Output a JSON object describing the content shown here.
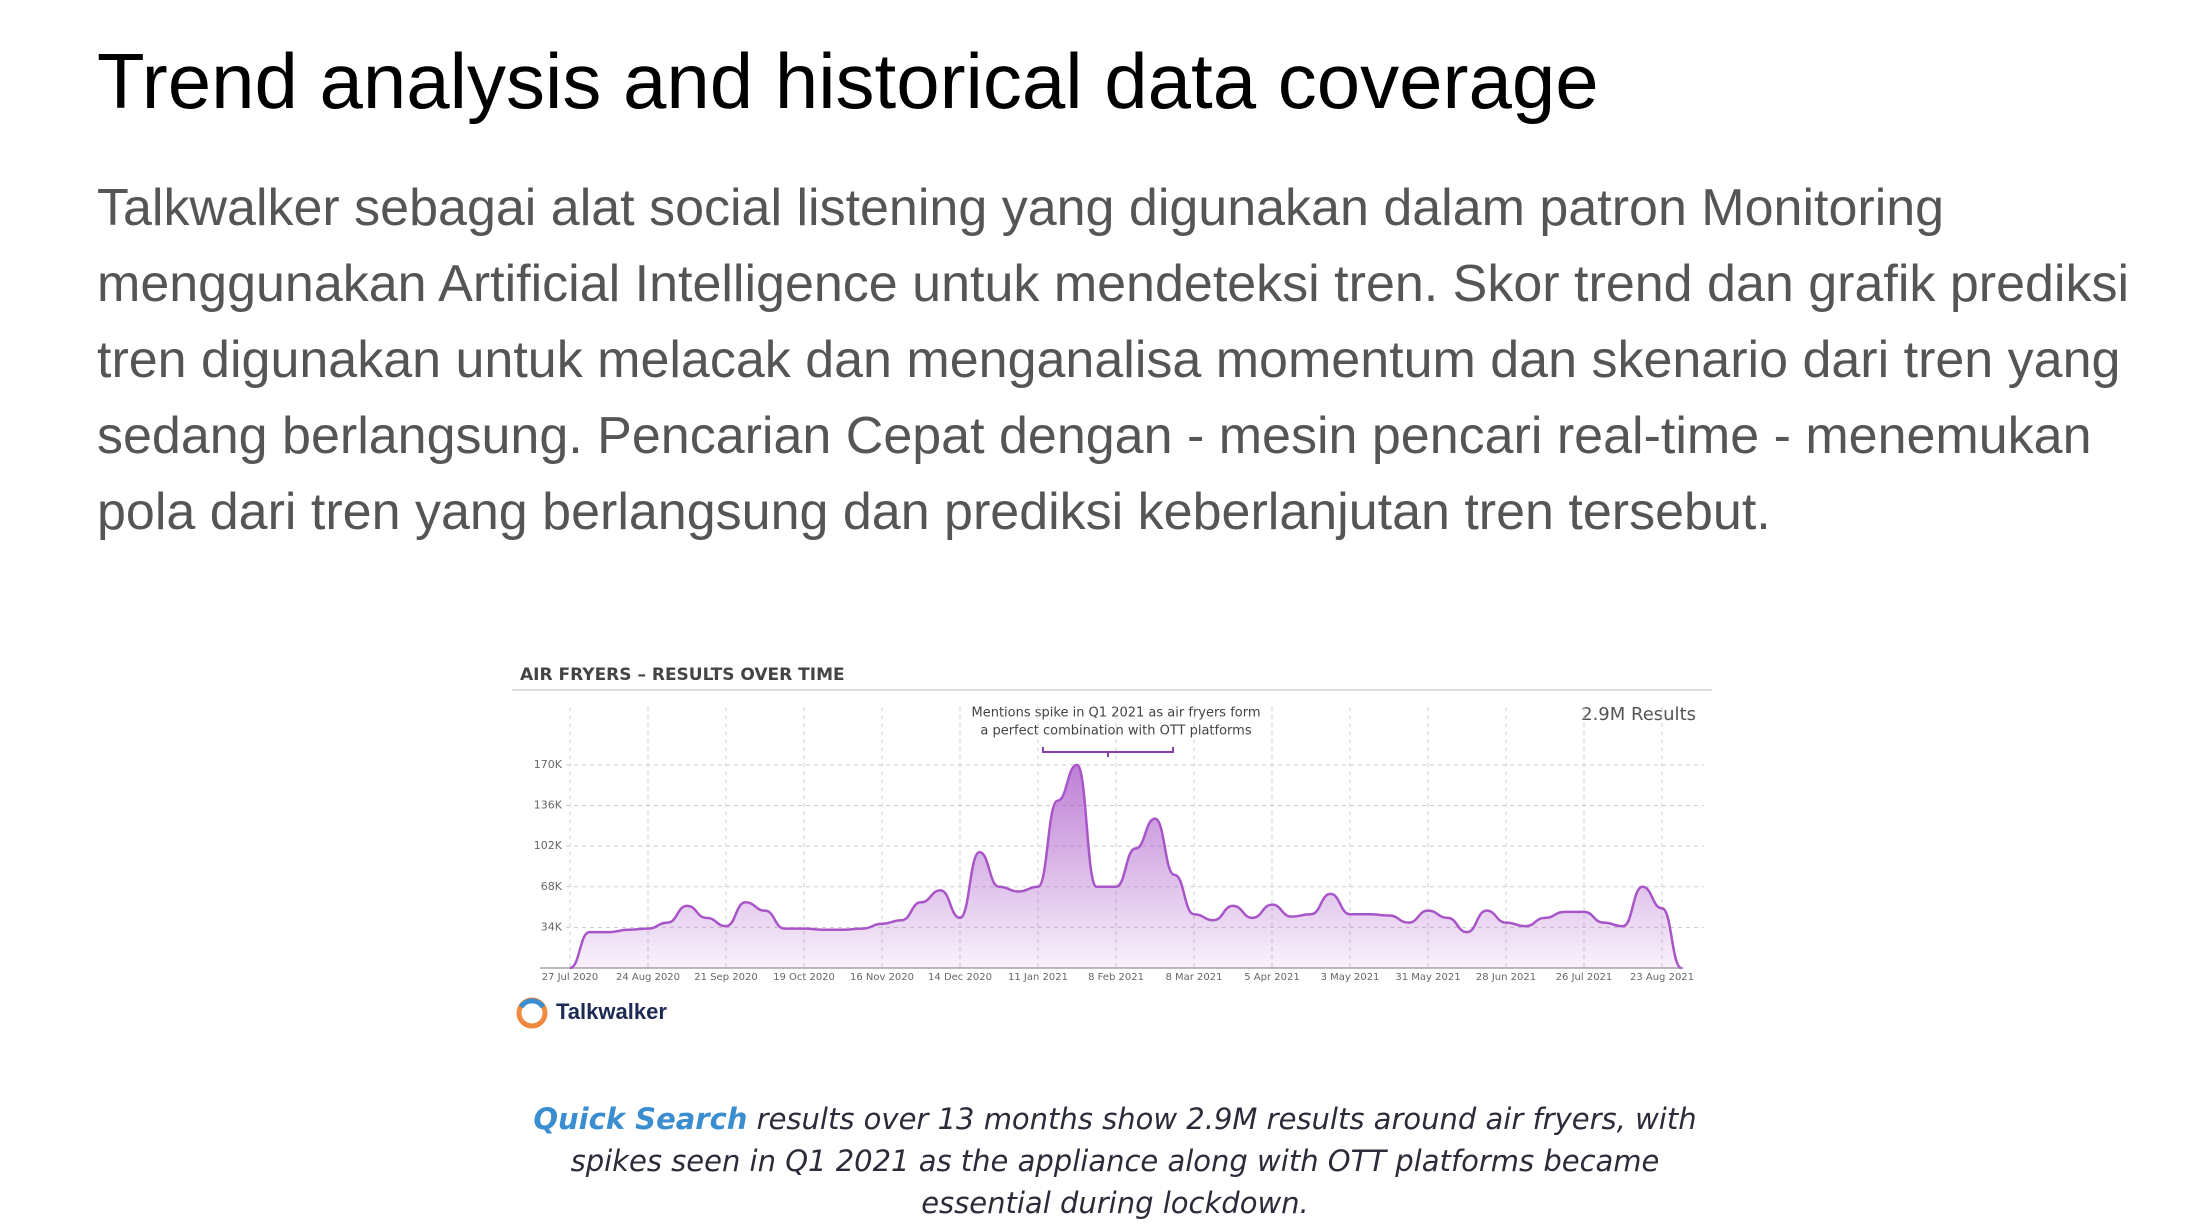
{
  "heading": "Trend analysis and historical data coverage",
  "paragraph": "Talkwalker sebagai alat social listening yang digunakan dalam patron Monitoring menggunakan Artificial Intelligence untuk mendeteksi tren. Skor trend dan grafik prediksi tren digunakan untuk melacak dan menganalisa momentum dan skenario dari tren yang sedang berlangsung. Pencarian Cepat dengan - mesin pencari real-time - menemukan pola dari tren yang berlangsung dan prediksi keberlanjutan tren tersebut.",
  "chart_data": {
    "type": "area",
    "title": "AIR FRYERS – RESULTS OVER TIME",
    "total": "2.9M Results",
    "annotation": [
      "Mentions spike in Q1 2021 as air fryers form",
      "a perfect combination with OTT platforms"
    ],
    "categories": [
      "27 Jul 2020",
      null,
      null,
      null,
      "24 Aug 2020",
      null,
      null,
      null,
      "21 Sep 2020",
      null,
      null,
      null,
      "19 Oct 2020",
      null,
      null,
      null,
      "16 Nov 2020",
      null,
      null,
      null,
      "14 Dec 2020",
      null,
      null,
      null,
      "11 Jan 2021",
      null,
      null,
      null,
      "8 Feb 2021",
      null,
      null,
      null,
      "8 Mar 2021",
      null,
      null,
      null,
      "5 Apr 2021",
      null,
      null,
      null,
      "3 May 2021",
      null,
      null,
      null,
      "31 May 2021",
      null,
      null,
      null,
      "28 Jun 2021",
      null,
      null,
      null,
      "26 Jul 2021",
      null,
      null,
      null,
      "23 Aug 2021",
      null
    ],
    "values": [
      0,
      30000,
      30000,
      32000,
      33000,
      38000,
      52000,
      42000,
      35000,
      55000,
      48000,
      33000,
      33000,
      32000,
      32000,
      33000,
      37000,
      40000,
      55000,
      65000,
      42000,
      97000,
      68000,
      64000,
      68000,
      140000,
      170000,
      68000,
      68000,
      100000,
      125000,
      78000,
      45000,
      40000,
      52000,
      42000,
      53000,
      43000,
      45000,
      62000,
      45000,
      45000,
      44000,
      38000,
      48000,
      42000,
      30000,
      48000,
      38000,
      35000,
      42000,
      47000,
      47000,
      38000,
      35000,
      68000,
      50000,
      0
    ],
    "color": "#a855c8",
    "ylim": [
      0,
      185000
    ],
    "yticks": [
      {
        "value": 34000,
        "label": "34K"
      },
      {
        "value": 68000,
        "label": "68K"
      },
      {
        "value": 102000,
        "label": "102K"
      },
      {
        "value": 136000,
        "label": "136K"
      },
      {
        "value": 170000,
        "label": "170K"
      }
    ],
    "grid": true
  },
  "brand": "Talkwalker",
  "caption": {
    "highlight": "Quick Search",
    "text": "results over 13 months show 2.9M results around air fryers, with spikes seen in Q1 2021 as the appliance along with OTT platforms became essential during lockdown."
  }
}
